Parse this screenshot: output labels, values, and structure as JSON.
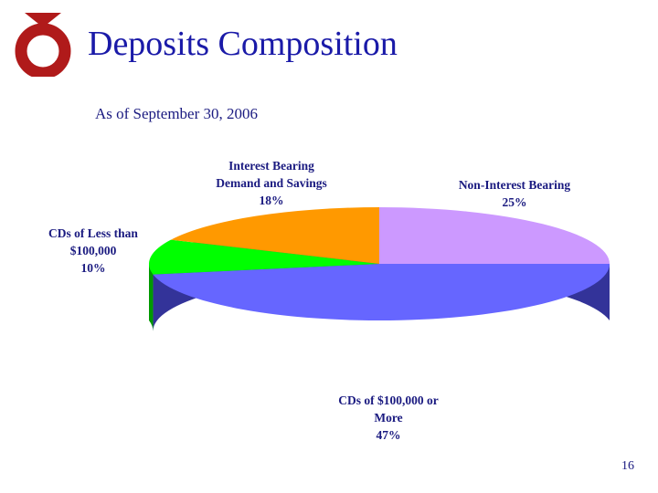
{
  "slide": {
    "title": "Deposits Composition",
    "subtitle": "As of September 30, 2006",
    "page_number": "16"
  },
  "logo": {
    "icon": "red-ring-logo-icon",
    "color": "#b01a1a"
  },
  "chart_data": {
    "type": "pie",
    "three_d": true,
    "title": "",
    "series": [
      {
        "name": "Non-Interest Bearing",
        "value": 25,
        "label": "25%",
        "color": "#cc99ff",
        "side_color": "#8a5fb8"
      },
      {
        "name": "CDs of $100,000 or More",
        "value": 47,
        "label": "47%",
        "color": "#6666ff",
        "side_color": "#333399"
      },
      {
        "name": "CDs of Less than $100,000",
        "value": 10,
        "label": "10%",
        "color": "#00ff00",
        "side_color": "#009900"
      },
      {
        "name": "Interest Bearing Demand and Savings",
        "value": 18,
        "label": "18%",
        "color": "#ff9900",
        "side_color": "#b36b00"
      }
    ]
  },
  "labels": {
    "non_interest": {
      "line1": "Non-Interest Bearing",
      "pct": "25%"
    },
    "cds_large": {
      "line1": "CDs of $100,000 or",
      "line2": "More",
      "pct": "47%"
    },
    "cds_small": {
      "line1": "CDs of Less than",
      "line2": "$100,000",
      "pct": "10%"
    },
    "interest_bearing": {
      "line1": "Interest Bearing",
      "line2": "Demand and Savings",
      "pct": "18%"
    }
  }
}
